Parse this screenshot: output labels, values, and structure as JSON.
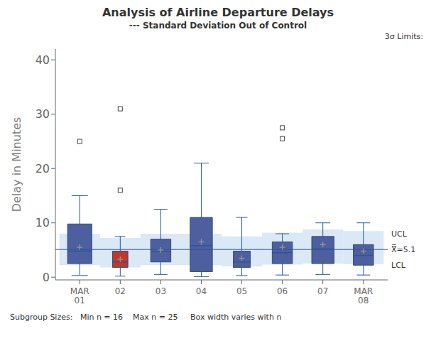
{
  "chart_data": {
    "type": "box",
    "title": "Analysis of Airline Departure Delays",
    "subtitle": "--- Standard Deviation Out of Control",
    "ylabel": "Delay in Minutes",
    "note": "Subgroup Sizes:   Min n = 16    Max n = 25     Box width varies with n",
    "categories": [
      "MAR\n01",
      "02",
      "03",
      "04",
      "05",
      "06",
      "07",
      "MAR\n08"
    ],
    "boxes": [
      {
        "q1": 2.5,
        "median": 4.8,
        "q3": 9.8,
        "mean": 5.5,
        "whisker_lo": 0.3,
        "whisker_hi": 15.0,
        "outliers": [
          25.0
        ],
        "width": 0.6
      },
      {
        "q1": 1.8,
        "median": 2.8,
        "q3": 4.8,
        "mean": 3.3,
        "whisker_lo": 0.2,
        "whisker_hi": 7.5,
        "outliers": [
          16.0,
          31.0
        ],
        "width": 0.38
      },
      {
        "q1": 2.8,
        "median": 4.7,
        "q3": 7.0,
        "mean": 5.0,
        "whisker_lo": 0.5,
        "whisker_hi": 12.5,
        "outliers": [],
        "width": 0.5
      },
      {
        "q1": 1.0,
        "median": 5.8,
        "q3": 11.0,
        "mean": 6.5,
        "whisker_lo": 0.1,
        "whisker_hi": 21.0,
        "outliers": [],
        "width": 0.55
      },
      {
        "q1": 1.8,
        "median": 2.8,
        "q3": 4.8,
        "mean": 3.5,
        "whisker_lo": 0.3,
        "whisker_hi": 11.0,
        "outliers": [],
        "width": 0.42
      },
      {
        "q1": 2.5,
        "median": 4.5,
        "q3": 6.5,
        "mean": 5.5,
        "whisker_lo": 0.4,
        "whisker_hi": 8.0,
        "outliers": [
          25.5,
          27.5
        ],
        "width": 0.5
      },
      {
        "q1": 2.5,
        "median": 5.2,
        "q3": 7.5,
        "mean": 6.0,
        "whisker_lo": 0.5,
        "whisker_hi": 10.0,
        "outliers": [],
        "width": 0.55
      },
      {
        "q1": 2.2,
        "median": 4.0,
        "q3": 6.0,
        "mean": 4.8,
        "whisker_lo": 0.4,
        "whisker_hi": 10.0,
        "outliers": [],
        "width": 0.5
      }
    ],
    "colors": [
      "#4D5F9E",
      "#C0392B",
      "#4D5F9E",
      "#4D5F9E",
      "#4D5F9E",
      "#4D5F9E",
      "#4D5F9E",
      "#4D5F9E"
    ],
    "center_line": 5.1,
    "ucl": [
      8.0,
      7.2,
      8.0,
      8.0,
      7.5,
      8.2,
      8.8,
      8.5
    ],
    "lcl": [
      2.2,
      1.8,
      2.2,
      2.2,
      2.0,
      2.3,
      2.5,
      2.4
    ],
    "ucl_label": "UCL",
    "center_label": "X̿=5.1",
    "lcl_label": "LCL",
    "limits_label": "3σ Limits:",
    "ylim": [
      -0.5,
      42
    ],
    "yticks": [
      0,
      10,
      20,
      30,
      40
    ],
    "grid": false
  }
}
